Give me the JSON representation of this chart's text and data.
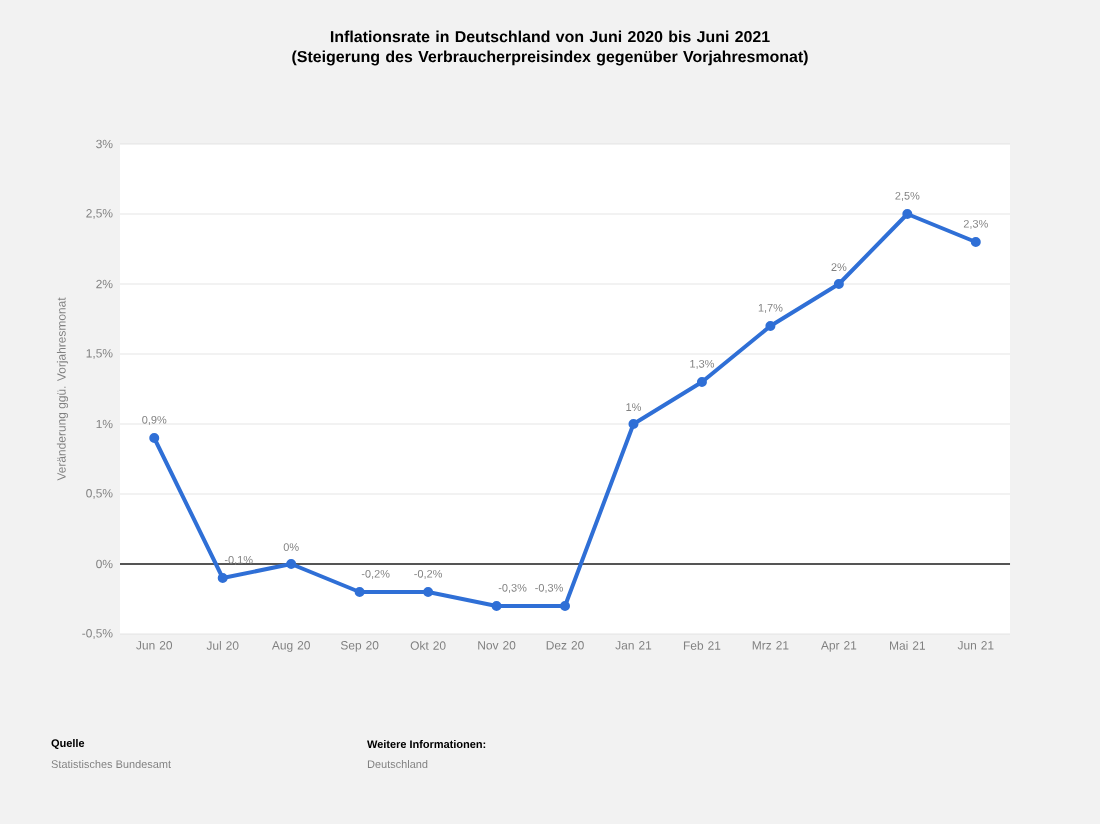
{
  "chart_data": {
    "type": "line",
    "title": "Inflationsrate in Deutschland von Juni 2020 bis Juni 2021 (Steigerung des Verbraucherpreisindex gegenüber Vorjahresmonat)",
    "ylabel": "Veränderung ggü. Vorjahresmonat",
    "categories": [
      "Jun 20",
      "Jul 20",
      "Aug 20",
      "Sep 20",
      "Okt 20",
      "Nov 20",
      "Dez 20",
      "Jan 21",
      "Feb 21",
      "Mrz 21",
      "Apr 21",
      "Mai 21",
      "Jun 21"
    ],
    "series": [
      {
        "color": "#2f6fd6",
        "values": [
          0.9,
          -0.1,
          0,
          -0.2,
          -0.2,
          -0.3,
          -0.3,
          1,
          1.3,
          1.7,
          2,
          2.5,
          2.3
        ],
        "value_labels": [
          "0,9%",
          "-0,1%",
          "0%",
          "-0,2%",
          "-0,2%",
          "-0,3%",
          "-0,3%",
          "1%",
          "1,3%",
          "1,7%",
          "2%",
          "2,5%",
          "2,3%"
        ]
      }
    ],
    "ylim": [
      -0.5,
      3
    ],
    "yticks": [
      {
        "value": -0.5,
        "label": "-0,5%"
      },
      {
        "value": 0,
        "label": "0%"
      },
      {
        "value": 0.5,
        "label": "0,5%"
      },
      {
        "value": 1,
        "label": "1%"
      },
      {
        "value": 1.5,
        "label": "1,5%"
      },
      {
        "value": 2,
        "label": "2%"
      },
      {
        "value": 2.5,
        "label": "2,5%"
      },
      {
        "value": 3,
        "label": "3%"
      }
    ],
    "grid": "y",
    "marker": "circle",
    "line_style": "solid",
    "ref_lines": [
      {
        "axis": "y",
        "value": 0,
        "color": "#555555"
      }
    ],
    "annotations": [
      "Quelle",
      "Statistisches Bundesamt",
      "Weitere Informationen:",
      "Deutschland"
    ]
  }
}
